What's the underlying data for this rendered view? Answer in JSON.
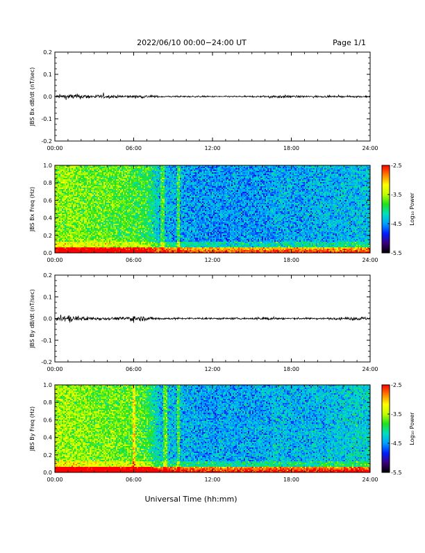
{
  "header": {
    "title": "2022/06/10  00:00−24:00 UT",
    "page_label": "Page 1/1"
  },
  "footer": {
    "xlabel": "Universal Time (hh:mm)"
  },
  "colorbar": {
    "label": "Log₁₀ Power",
    "ticks": [
      "-2.5",
      "-3.5",
      "-4.5",
      "-5.5"
    ],
    "range": [
      -5.5,
      -2.5
    ],
    "colormap": [
      "#000000",
      "#3a0080",
      "#0020ff",
      "#00a0ff",
      "#00e0c0",
      "#20e020",
      "#c0ff00",
      "#ffff00",
      "#ff8000",
      "#ff0000"
    ]
  },
  "chart_data": [
    {
      "type": "line",
      "ylabel": "JBS Bx dB/dt (nT/sec)",
      "ylim": [
        -0.2,
        0.2
      ],
      "yticks": [
        "0.2",
        "0.1",
        "0.0",
        "-0.1",
        "-0.2"
      ],
      "xlim": [
        "00:00",
        "24:00"
      ],
      "xticks": [
        "00:00",
        "06:00",
        "12:00",
        "18:00",
        "24:00"
      ],
      "series": [
        {
          "x": [
            "00:00",
            "01:00",
            "02:00",
            "03:00",
            "04:00",
            "05:00",
            "06:00",
            "07:00",
            "08:00",
            "09:00",
            "10:00",
            "11:00",
            "12:00",
            "13:00",
            "14:00",
            "15:00",
            "16:00",
            "17:00",
            "18:00",
            "19:00",
            "20:00",
            "21:00",
            "22:00",
            "23:00",
            "24:00"
          ],
          "amplitude": [
            0.006,
            0.012,
            0.01,
            0.008,
            0.007,
            0.006,
            0.006,
            0.007,
            0.004,
            0.003,
            0.003,
            0.003,
            0.003,
            0.003,
            0.003,
            0.003,
            0.004,
            0.007,
            0.005,
            0.004,
            0.004,
            0.003,
            0.003,
            0.004,
            0.004
          ]
        }
      ],
      "grid": false
    },
    {
      "type": "heatmap",
      "ylabel": "JBS Bx Freq (Hz)",
      "ylim": [
        0.0,
        1.0
      ],
      "yticks": [
        "1.0",
        "0.8",
        "0.6",
        "0.4",
        "0.2",
        "0.0"
      ],
      "xlim": [
        "00:00",
        "24:00"
      ],
      "xticks": [
        "00:00",
        "06:00",
        "12:00",
        "18:00",
        "24:00"
      ],
      "zlabel": "Log₁₀ Power",
      "zlim": [
        -5.5,
        -2.5
      ],
      "background_level_by_hour": [
        -3.6,
        -3.6,
        -3.65,
        -3.7,
        -3.7,
        -3.75,
        -3.8,
        -3.85,
        -4.35,
        -4.4,
        -4.45,
        -4.5,
        -4.5,
        -4.5,
        -4.5,
        -4.5,
        -4.5,
        -4.4,
        -4.45,
        -4.45,
        -4.4,
        -4.4,
        -4.4,
        -4.35,
        -4.35
      ],
      "low_freq_enhancement": -3.0
    },
    {
      "type": "line",
      "ylabel": "JBS By dB/dt (nT/sec)",
      "ylim": [
        -0.2,
        0.2
      ],
      "yticks": [
        "0.2",
        "0.1",
        "0.0",
        "-0.1",
        "-0.2"
      ],
      "xlim": [
        "00:00",
        "24:00"
      ],
      "xticks": [
        "00:00",
        "06:00",
        "12:00",
        "18:00",
        "24:00"
      ],
      "series": [
        {
          "x": [
            "00:00",
            "01:00",
            "02:00",
            "03:00",
            "04:00",
            "05:00",
            "06:00",
            "07:00",
            "08:00",
            "09:00",
            "10:00",
            "11:00",
            "12:00",
            "13:00",
            "14:00",
            "15:00",
            "16:00",
            "17:00",
            "18:00",
            "19:00",
            "20:00",
            "21:00",
            "22:00",
            "23:00",
            "24:00"
          ],
          "amplitude": [
            0.008,
            0.015,
            0.01,
            0.008,
            0.006,
            0.006,
            0.014,
            0.008,
            0.005,
            0.004,
            0.004,
            0.004,
            0.004,
            0.004,
            0.004,
            0.004,
            0.008,
            0.005,
            0.004,
            0.004,
            0.004,
            0.004,
            0.005,
            0.008,
            0.006
          ]
        }
      ],
      "grid": false
    },
    {
      "type": "heatmap",
      "ylabel": "JBS By Freq (Hz)",
      "ylim": [
        0.0,
        1.0
      ],
      "yticks": [
        "1.0",
        "0.8",
        "0.6",
        "0.4",
        "0.2",
        "0.0"
      ],
      "xlim": [
        "00:00",
        "24:00"
      ],
      "xticks": [
        "00:00",
        "06:00",
        "12:00",
        "18:00",
        "24:00"
      ],
      "zlabel": "Log₁₀ Power",
      "zlim": [
        -5.5,
        -2.5
      ],
      "background_level_by_hour": [
        -3.55,
        -3.55,
        -3.6,
        -3.65,
        -3.65,
        -3.7,
        -3.7,
        -3.8,
        -4.3,
        -4.35,
        -4.4,
        -4.45,
        -4.45,
        -4.45,
        -4.45,
        -4.45,
        -4.4,
        -4.35,
        -4.4,
        -4.4,
        -4.35,
        -4.35,
        -4.3,
        -4.25,
        -4.25
      ],
      "low_freq_enhancement": -2.9
    }
  ]
}
